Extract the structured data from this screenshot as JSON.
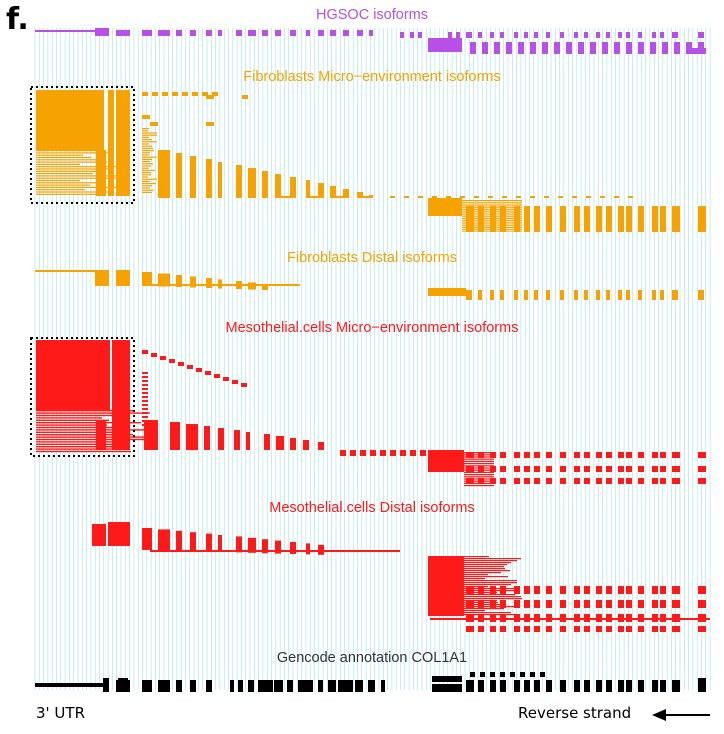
{
  "panel": {
    "letter": "f."
  },
  "colors": {
    "grid": "#9fe3ec",
    "hgsoc": "#b84fe6",
    "fibroblast": "#f6a200",
    "mesothelial": "#ff1a1a",
    "gencode": "#000000",
    "gencode_label": "#333333"
  },
  "tracks": [
    {
      "id": "hgsoc",
      "title": "HGSOC isoforms",
      "color_key": "hgsoc"
    },
    {
      "id": "fib_micro",
      "title": "Fibroblasts Micro−environment isoforms",
      "color_key": "fibroblast"
    },
    {
      "id": "fib_distal",
      "title": "Fibroblasts Distal isoforms",
      "color_key": "fibroblast"
    },
    {
      "id": "meso_micro",
      "title": "Mesothelial.cells Micro−environment isoforms",
      "color_key": "mesothelial"
    },
    {
      "id": "meso_distal",
      "title": "Mesothelial.cells Distal isoforms",
      "color_key": "mesothelial"
    },
    {
      "id": "gencode",
      "title": "Gencode annotation COL1A1",
      "color_key": "gencode_label"
    }
  ],
  "footer": {
    "utr_label": "3' UTR",
    "strand_label": "Reverse strand",
    "arrow_icon": "left-arrow-icon"
  }
}
